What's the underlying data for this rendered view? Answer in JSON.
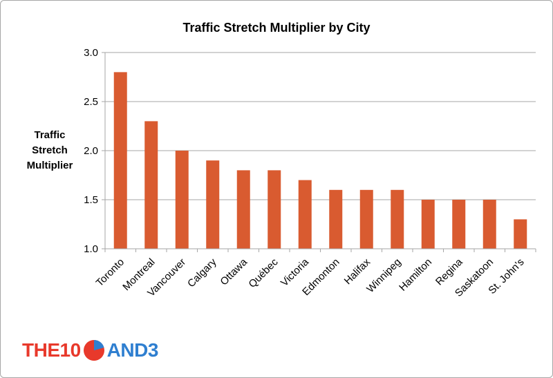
{
  "chart_data": {
    "type": "bar",
    "title": "Traffic Stretch Multiplier by City",
    "ylabel_lines": [
      "Traffic",
      "Stretch",
      "Multiplier"
    ],
    "xlabel": "",
    "categories": [
      "Toronto",
      "Montreal",
      "Vancouver",
      "Calgary",
      "Ottawa",
      "Québec",
      "Victoria",
      "Edmonton",
      "Halifax",
      "Winnipeg",
      "Hamilton",
      "Regina",
      "Saskatoon",
      "St. John's"
    ],
    "values": [
      2.8,
      2.3,
      2.0,
      1.9,
      1.8,
      1.8,
      1.7,
      1.6,
      1.6,
      1.6,
      1.5,
      1.5,
      1.5,
      1.3
    ],
    "ylim": [
      1.0,
      3.0
    ],
    "yticks": [
      "1.0",
      "1.5",
      "2.0",
      "2.5",
      "3.0"
    ],
    "grid": true,
    "bar_color": "#d95b30"
  },
  "logo": {
    "left_text": "THE10",
    "right_text": "AND3",
    "left_color": "#e8392b",
    "right_color": "#2f7fd0"
  }
}
